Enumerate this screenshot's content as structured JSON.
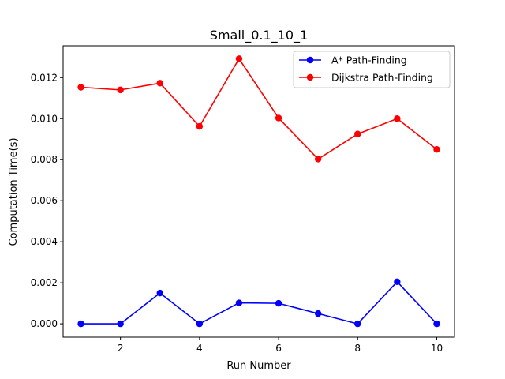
{
  "chart_data": {
    "type": "line",
    "title": "Small_0.1_10_1",
    "xlabel": "Run Number",
    "ylabel": "Computation Time(s)",
    "x": [
      1,
      2,
      3,
      4,
      5,
      6,
      7,
      8,
      9,
      10
    ],
    "xlim": [
      0.55,
      10.45
    ],
    "ylim": [
      -0.00065,
      0.01355
    ],
    "xticks": [
      2,
      4,
      6,
      8,
      10
    ],
    "xtick_labels": [
      "2",
      "4",
      "6",
      "8",
      "10"
    ],
    "yticks": [
      0.0,
      0.002,
      0.004,
      0.006,
      0.008,
      0.01,
      0.012
    ],
    "ytick_labels": [
      "0.000",
      "0.002",
      "0.004",
      "0.006",
      "0.008",
      "0.010",
      "0.012"
    ],
    "grid": false,
    "legend_position": "top-right",
    "series": [
      {
        "name": "A* Path-Finding",
        "color": "#0000ff",
        "marker": "circle",
        "values": [
          0.0,
          0.0,
          0.0015,
          0.0,
          0.00102,
          0.001,
          0.0005,
          0.0,
          0.00205,
          0.0
        ]
      },
      {
        "name": "Dijkstra Path-Finding",
        "color": "#ff0000",
        "marker": "circle",
        "values": [
          0.01153,
          0.0114,
          0.01173,
          0.00962,
          0.01292,
          0.01003,
          0.00803,
          0.00925,
          0.01,
          0.0085
        ]
      }
    ]
  }
}
